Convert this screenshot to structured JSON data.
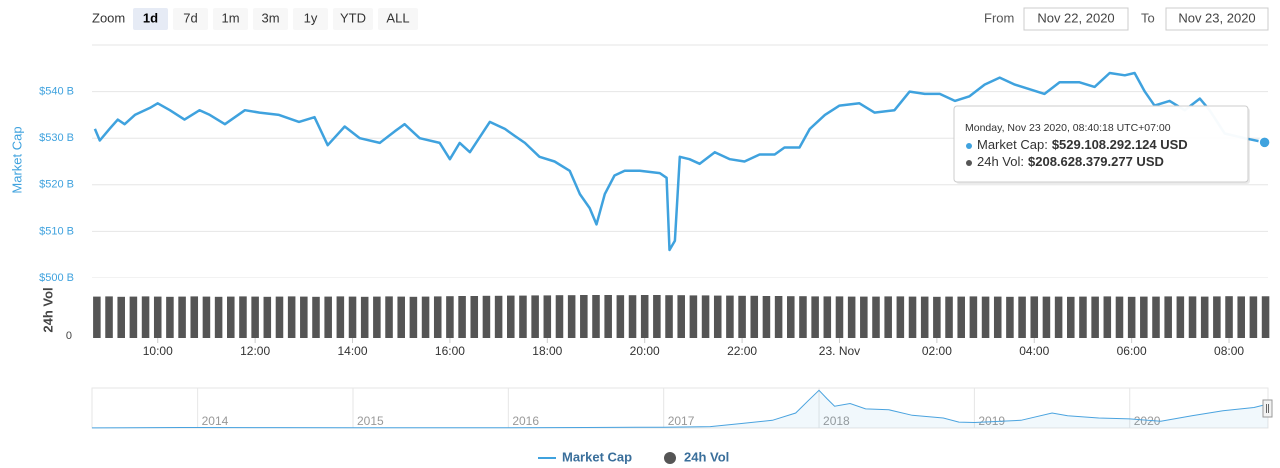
{
  "zoom": {
    "label": "Zoom",
    "buttons": [
      "1d",
      "7d",
      "1m",
      "3m",
      "1y",
      "YTD",
      "ALL"
    ],
    "selected": "1d"
  },
  "range": {
    "from_label": "From",
    "from": "Nov 22, 2020",
    "to_label": "To",
    "to": "Nov 23, 2020"
  },
  "chart_data": {
    "type": "line",
    "ylabel": "Market Cap",
    "y2label": "24h Vol",
    "xlim": [
      8.65,
      32.8
    ],
    "xticks": [
      {
        "value": 10,
        "label": "10:00"
      },
      {
        "value": 12,
        "label": "12:00"
      },
      {
        "value": 14,
        "label": "14:00"
      },
      {
        "value": 16,
        "label": "16:00"
      },
      {
        "value": 18,
        "label": "18:00"
      },
      {
        "value": 20,
        "label": "20:00"
      },
      {
        "value": 22,
        "label": "22:00"
      },
      {
        "value": 24,
        "label": "23. Nov"
      },
      {
        "value": 26,
        "label": "02:00"
      },
      {
        "value": 28,
        "label": "04:00"
      },
      {
        "value": 30,
        "label": "06:00"
      },
      {
        "value": 32,
        "label": "08:00"
      }
    ],
    "ylim": [
      500,
      550
    ],
    "yticks": [
      {
        "value": 500,
        "label": "$500 B"
      },
      {
        "value": 510,
        "label": "$510 B"
      },
      {
        "value": 520,
        "label": "$520 B"
      },
      {
        "value": 530,
        "label": "$530 B"
      },
      {
        "value": 540,
        "label": "$540 B"
      }
    ],
    "y2lim": [
      0,
      300
    ],
    "y2ticks": [
      0
    ],
    "grid": true,
    "series": [
      {
        "name": "Market Cap",
        "color": "#3fa2de",
        "x": [
          8.71,
          8.81,
          9.01,
          9.18,
          9.32,
          9.53,
          9.84,
          10,
          10.25,
          10.55,
          10.86,
          11.07,
          11.38,
          11.79,
          12.09,
          12.49,
          12.9,
          13.22,
          13.49,
          13.84,
          14.15,
          14.56,
          14.87,
          15.07,
          15.38,
          15.79,
          16.0,
          16.2,
          16.41,
          16.82,
          17.13,
          17.33,
          17.54,
          17.84,
          18.15,
          18.46,
          18.67,
          18.87,
          19.01,
          19.18,
          19.38,
          19.59,
          19.9,
          20.31,
          20.45,
          20.51,
          20.62,
          20.72,
          20.92,
          21.13,
          21.44,
          21.75,
          22.05,
          22.36,
          22.67,
          22.87,
          23.18,
          23.39,
          23.7,
          24.0,
          24.41,
          24.72,
          25.13,
          25.44,
          25.75,
          26.06,
          26.37,
          26.67,
          26.98,
          27.29,
          27.6,
          27.91,
          28.21,
          28.52,
          28.93,
          29.24,
          29.55,
          29.86,
          30.06,
          30.27,
          30.47,
          30.78,
          31.09,
          31.4,
          31.6,
          31.91,
          32.32,
          32.73
        ],
        "values": [
          532,
          529.5,
          532,
          534,
          533,
          535,
          536.5,
          537.5,
          536,
          534,
          536,
          535,
          533,
          536,
          535.5,
          535,
          533.5,
          534.5,
          528.5,
          532.5,
          530,
          529,
          531.5,
          533,
          530,
          529,
          525.5,
          529,
          527,
          533.5,
          532,
          530.5,
          529,
          526,
          525,
          523,
          518,
          515,
          511.5,
          518,
          522,
          523,
          523,
          522.5,
          521.5,
          506,
          508,
          526,
          525.5,
          524.5,
          527,
          525.5,
          525,
          526.5,
          526.5,
          528,
          528,
          532,
          535,
          537,
          537.5,
          535.5,
          536,
          540,
          539.5,
          539.5,
          538,
          539,
          541.5,
          543,
          541.5,
          540.5,
          539.5,
          542,
          542,
          541,
          544,
          543.5,
          544,
          540,
          537,
          538,
          536,
          538.5,
          536,
          531,
          530,
          529.1
        ]
      },
      {
        "name": "24h Vol",
        "type": "bar",
        "color": "#555555",
        "axis": "y2",
        "x": [
          8.75,
          9,
          9.25,
          9.5,
          9.75,
          10,
          10.25,
          10.5,
          10.75,
          11,
          11.25,
          11.5,
          11.75,
          12,
          12.25,
          12.5,
          12.75,
          13,
          13.25,
          13.5,
          13.75,
          14,
          14.25,
          14.5,
          14.75,
          15,
          15.25,
          15.5,
          15.75,
          16,
          16.25,
          16.5,
          16.75,
          17,
          17.25,
          17.5,
          17.75,
          18,
          18.25,
          18.5,
          18.75,
          19,
          19.25,
          19.5,
          19.75,
          20,
          20.25,
          20.5,
          20.75,
          21,
          21.25,
          21.5,
          21.75,
          22,
          22.25,
          22.5,
          22.75,
          23,
          23.25,
          23.5,
          23.75,
          24,
          24.25,
          24.5,
          24.75,
          25,
          25.25,
          25.5,
          25.75,
          26,
          26.25,
          26.5,
          26.75,
          27,
          27.25,
          27.5,
          27.75,
          28,
          28.25,
          28.5,
          28.75,
          29,
          29.25,
          29.5,
          29.75,
          30,
          30.25,
          30.5,
          30.75,
          31,
          31.25,
          31.5,
          31.75,
          32,
          32.25,
          32.5,
          32.75
        ],
        "values": [
          207,
          208,
          206,
          207,
          208,
          207,
          206,
          207,
          208,
          207,
          206,
          207,
          208,
          207,
          206,
          207,
          208,
          207,
          206,
          207,
          208,
          207,
          206,
          207,
          208,
          207,
          206,
          207,
          208,
          209,
          210,
          210,
          211,
          211,
          212,
          212,
          213,
          213,
          214,
          214,
          215,
          215,
          215,
          214,
          214,
          215,
          215,
          214,
          214,
          213,
          213,
          212,
          212,
          211,
          211,
          210,
          210,
          209,
          209,
          208,
          208,
          208,
          207,
          207,
          207,
          208,
          208,
          207,
          207,
          206,
          207,
          207,
          208,
          207,
          207,
          206,
          207,
          208,
          207,
          207,
          206,
          207,
          207,
          208,
          207,
          206,
          207,
          207,
          208,
          208,
          208,
          207,
          208,
          209,
          208,
          208,
          208.6
        ]
      }
    ],
    "navigator": {
      "color": "#4aa3df",
      "xlim": [
        2013.32,
        2020.89
      ],
      "xticks": [
        2014,
        2015,
        2016,
        2017,
        2018,
        2019,
        2020
      ],
      "ylim": [
        0,
        880
      ],
      "x": [
        2013.32,
        2013.9,
        2014.0,
        2014.5,
        2015.0,
        2015.5,
        2016.0,
        2016.5,
        2017.0,
        2017.3,
        2017.5,
        2017.7,
        2017.85,
        2017.93,
        2018.0,
        2018.05,
        2018.1,
        2018.2,
        2018.3,
        2018.45,
        2018.6,
        2018.8,
        2018.9,
        2019.0,
        2019.3,
        2019.5,
        2019.6,
        2019.8,
        2020.0,
        2020.2,
        2020.4,
        2020.6,
        2020.8,
        2020.89
      ],
      "values": [
        1.5,
        12,
        11,
        8,
        4,
        4,
        7,
        12,
        18,
        30,
        100,
        170,
        330,
        600,
        830,
        650,
        480,
        540,
        420,
        400,
        280,
        220,
        130,
        120,
        170,
        330,
        270,
        220,
        200,
        150,
        270,
        380,
        450,
        529
      ]
    },
    "tooltip": {
      "date": "Monday, Nov 23 2020, 08:40:18 UTC+07:00",
      "items": [
        {
          "label": "Market Cap:",
          "value": "$529.108.292.124 USD"
        },
        {
          "label": "24h Vol:",
          "value": "$208.628.379.277 USD"
        }
      ]
    }
  }
}
